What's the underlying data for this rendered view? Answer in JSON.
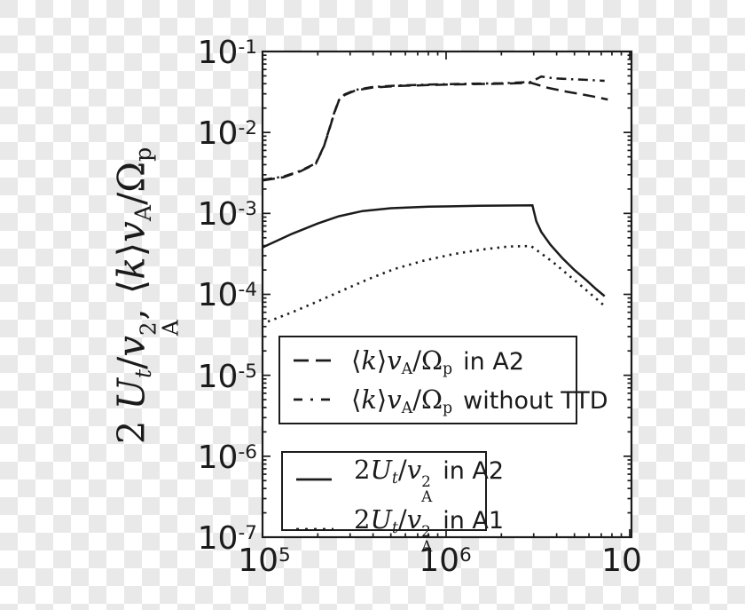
{
  "figure": {
    "background_checker_light": "#ffffff",
    "background_checker_gray": "#e9e9e9",
    "ink_color": "#1b1b1b",
    "plot_background": "#ffffff"
  },
  "math": {
    "two": "2",
    "U": "U",
    "t": "t",
    "slash": "/",
    "v": "v",
    "A": "A",
    "comma": ",",
    "lang": "⟨",
    "k": "k",
    "rang": "⟩",
    "omega": "Ω",
    "p": "p"
  },
  "legend": {
    "box1": {
      "items": [
        {
          "style": "dashed",
          "label": "⟨k⟩v_A/Ω_p in A2",
          "suffix": "in A2"
        },
        {
          "style": "dashdot",
          "label": "⟨k⟩v_A/Ω_p without TTD",
          "suffix": "without TTD"
        }
      ]
    },
    "box2": {
      "items": [
        {
          "style": "solid",
          "label": "2U_t/v_A^2 in A2",
          "suffix": "in A2"
        },
        {
          "style": "dotted",
          "label": "2U_t/v_A^2 in A1",
          "suffix": "in A1"
        }
      ]
    }
  },
  "chart_data": {
    "type": "line",
    "title": "",
    "xlabel": "",
    "ylabel": "2 U_t/v_A^2, ⟨k⟩v_A/Ω_p",
    "x_scale": "log",
    "y_scale": "log",
    "xlim": [
      100000,
      10200000
    ],
    "ylim": [
      1e-07,
      0.1
    ],
    "grid": false,
    "legend_position": "inside lower-center, two stacked boxes",
    "x_ticks": [
      {
        "base": "10",
        "exp": "5"
      },
      {
        "base": "10",
        "exp": "6"
      },
      {
        "base": "10",
        "exp": ""
      }
    ],
    "y_ticks": [
      {
        "base": "10",
        "exp": "-1"
      },
      {
        "base": "10",
        "exp": "-2"
      },
      {
        "base": "10",
        "exp": "-3"
      },
      {
        "base": "10",
        "exp": "-4"
      },
      {
        "base": "10",
        "exp": "-5"
      },
      {
        "base": "10",
        "exp": "-6"
      },
      {
        "base": "10",
        "exp": "-7"
      }
    ],
    "series": [
      {
        "name": "⟨k⟩v_A/Ω_p in A2",
        "style": "dashed",
        "points": [
          [
            100000.0,
            0.00255
          ],
          [
            130000.0,
            0.0028
          ],
          [
            160000.0,
            0.0033
          ],
          [
            195000.0,
            0.0041
          ],
          [
            215000.0,
            0.0065
          ],
          [
            230000.0,
            0.0105
          ],
          [
            245000.0,
            0.017
          ],
          [
            260000.0,
            0.0245
          ],
          [
            280000.0,
            0.029
          ],
          [
            320000.0,
            0.033
          ],
          [
            400000.0,
            0.036
          ],
          [
            550000.0,
            0.0375
          ],
          [
            800000.0,
            0.0385
          ],
          [
            1300000.0,
            0.0395
          ],
          [
            2000000.0,
            0.04
          ],
          [
            2900000.0,
            0.041
          ],
          [
            3600000.0,
            0.0355
          ],
          [
            4500000.0,
            0.032
          ],
          [
            5500000.0,
            0.0295
          ],
          [
            6500000.0,
            0.0275
          ],
          [
            7600000.0,
            0.0255
          ]
        ]
      },
      {
        "name": "⟨k⟩v_A/Ω_p without TTD",
        "style": "dashdot",
        "points": [
          [
            100000.0,
            0.0026
          ],
          [
            130000.0,
            0.00285
          ],
          [
            160000.0,
            0.00335
          ],
          [
            195000.0,
            0.00415
          ],
          [
            215000.0,
            0.0066
          ],
          [
            230000.0,
            0.0107
          ],
          [
            245000.0,
            0.0172
          ],
          [
            260000.0,
            0.025
          ],
          [
            280000.0,
            0.0295
          ],
          [
            320000.0,
            0.0335
          ],
          [
            400000.0,
            0.0365
          ],
          [
            550000.0,
            0.038
          ],
          [
            800000.0,
            0.039
          ],
          [
            1300000.0,
            0.04
          ],
          [
            2000000.0,
            0.0405
          ],
          [
            2900000.0,
            0.042
          ],
          [
            3300000.0,
            0.049
          ],
          [
            3900000.0,
            0.0465
          ],
          [
            4800000.0,
            0.0455
          ],
          [
            6000000.0,
            0.0445
          ],
          [
            7300000.0,
            0.0435
          ]
        ]
      },
      {
        "name": "2U_t/v_A^2 in A2",
        "style": "solid",
        "points": [
          [
            100000.0,
            0.00038
          ],
          [
            145000.0,
            0.00056
          ],
          [
            200000.0,
            0.00075
          ],
          [
            260000.0,
            0.00092
          ],
          [
            350000.0,
            0.00107
          ],
          [
            500000.0,
            0.00116
          ],
          [
            800000.0,
            0.00121
          ],
          [
            1500000.0,
            0.00124
          ],
          [
            2950000.0,
            0.00126
          ],
          [
            3100000.0,
            0.0008
          ],
          [
            3300000.0,
            0.00059
          ],
          [
            3700000.0,
            0.00041
          ],
          [
            4300000.0,
            0.00028
          ],
          [
            5000000.0,
            0.0002
          ],
          [
            5800000.0,
            0.00015
          ],
          [
            6600000.0,
            0.000115
          ],
          [
            7300000.0,
            9.5e-05
          ]
        ]
      },
      {
        "name": "2U_t/v_A^2 in A1",
        "style": "dotted",
        "points": [
          [
            107000.0,
            4.6e-05
          ],
          [
            145000.0,
            6e-05
          ],
          [
            200000.0,
            8.2e-05
          ],
          [
            280000.0,
            0.000115
          ],
          [
            380000.0,
            0.000155
          ],
          [
            520000.0,
            0.000205
          ],
          [
            750000.0,
            0.00026
          ],
          [
            1100000.0,
            0.000315
          ],
          [
            1600000.0,
            0.00036
          ],
          [
            2200000.0,
            0.00039
          ],
          [
            2900000.0,
            0.000395
          ],
          [
            3300000.0,
            0.00032
          ],
          [
            3900000.0,
            0.00024
          ],
          [
            4600000.0,
            0.000175
          ],
          [
            5500000.0,
            0.000125
          ],
          [
            6400000.0,
            9.3e-05
          ],
          [
            7400000.0,
            7e-05
          ]
        ]
      }
    ]
  }
}
